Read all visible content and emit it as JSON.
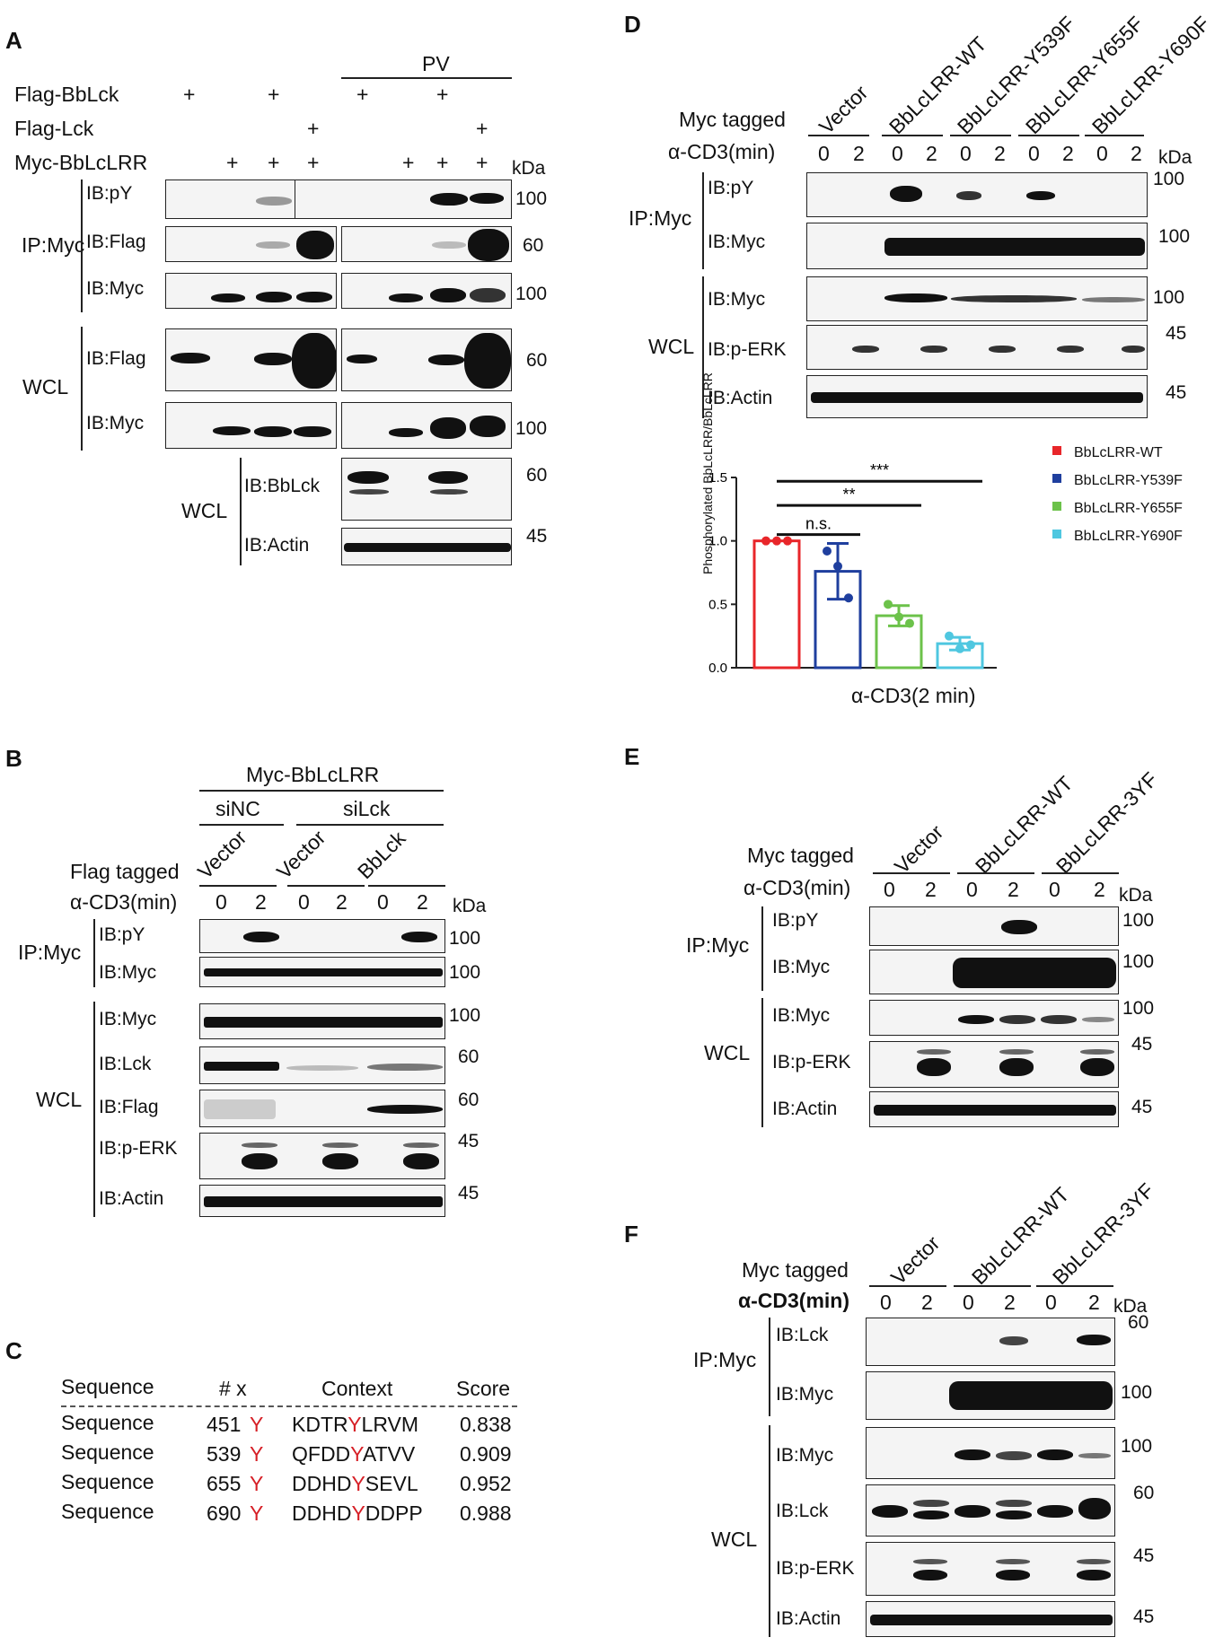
{
  "panels": {
    "A": {
      "letter": "A",
      "pv": "PV",
      "rows": [
        {
          "label": "Flag-BbLck",
          "marks": [
            "+",
            "+",
            "+",
            "+"
          ]
        },
        {
          "label": "Flag-Lck",
          "marks": [
            "+",
            "+"
          ]
        },
        {
          "label": "Myc-BbLcLRR",
          "marks": [
            "+",
            "+",
            "+",
            "+",
            "+",
            "+"
          ]
        }
      ],
      "kda": "kDa",
      "ip": "IP:Myc",
      "wcl": "WCL",
      "wcl2": "WCL",
      "blots": [
        {
          "ib": "IB:pY",
          "mw": "100"
        },
        {
          "ib": "IB:Flag",
          "mw": "60"
        },
        {
          "ib": "IB:Myc",
          "mw": "100"
        },
        {
          "ib": "IB:Flag",
          "mw": "60"
        },
        {
          "ib": "IB:Myc",
          "mw": "100"
        },
        {
          "ib": "IB:BbLck",
          "mw": "60"
        },
        {
          "ib": "IB:Actin",
          "mw": "45"
        }
      ]
    },
    "B": {
      "letter": "B",
      "top": "Myc-BbLcLRR",
      "sinc": "siNC",
      "silck": "siLck",
      "groups": [
        "Vector",
        "Vector",
        "BbLck"
      ],
      "tagged": "Flag tagged",
      "cd3": "α-CD3(min)",
      "times": [
        "0",
        "2",
        "0",
        "2",
        "0",
        "2"
      ],
      "kda": "kDa",
      "ip": "IP:Myc",
      "wcl": "WCL",
      "blots": [
        {
          "ib": "IB:pY",
          "mw": "100"
        },
        {
          "ib": "IB:Myc",
          "mw": "100"
        },
        {
          "ib": "IB:Myc",
          "mw": "100"
        },
        {
          "ib": "IB:Lck",
          "mw": "60"
        },
        {
          "ib": "IB:Flag",
          "mw": "60"
        },
        {
          "ib": "IB:p-ERK",
          "mw": "45"
        },
        {
          "ib": "IB:Actin",
          "mw": "45"
        }
      ]
    },
    "C": {
      "letter": "C",
      "headers": [
        "Sequence",
        "# x",
        "Context",
        "Score"
      ],
      "rows": [
        {
          "seq": "Sequence",
          "pos": "451",
          "aa": "Y",
          "pre": "KDTR",
          "mid": "Y",
          "post": "LRVM",
          "score": "0.838"
        },
        {
          "seq": "Sequence",
          "pos": "539",
          "aa": "Y",
          "pre": "QFDD",
          "mid": "Y",
          "post": "ATVV",
          "score": "0.909"
        },
        {
          "seq": "Sequence",
          "pos": "655",
          "aa": "Y",
          "pre": "DDHD",
          "mid": "Y",
          "post": "SEVL",
          "score": "0.952"
        },
        {
          "seq": "Sequence",
          "pos": "690",
          "aa": "Y",
          "pre": "DDHD",
          "mid": "Y",
          "post": "DDPP",
          "score": "0.988"
        }
      ]
    },
    "D": {
      "letter": "D",
      "groups": [
        "Vector",
        "BbLcLRR-WT",
        "BbLcLRR-Y539F",
        "BbLcLRR-Y655F",
        "BbLcLRR-Y690F"
      ],
      "tagged": "Myc tagged",
      "cd3": "α-CD3(min)",
      "times": [
        "0",
        "2",
        "0",
        "2",
        "0",
        "2",
        "0",
        "2",
        "0",
        "2"
      ],
      "kda": "kDa",
      "ip": "IP:Myc",
      "wcl": "WCL",
      "blots": [
        {
          "ib": "IB:pY",
          "mw": "100"
        },
        {
          "ib": "IB:Myc",
          "mw": "100"
        },
        {
          "ib": "IB:Myc",
          "mw": "100"
        },
        {
          "ib": "IB:p-ERK",
          "mw": "45"
        },
        {
          "ib": "IB:Actin",
          "mw": "45"
        }
      ]
    },
    "E": {
      "letter": "E",
      "groups": [
        "Vector",
        "BbLcLRR-WT",
        "BbLcLRR-3YF"
      ],
      "tagged": "Myc tagged",
      "cd3": "α-CD3(min)",
      "times": [
        "0",
        "2",
        "0",
        "2",
        "0",
        "2"
      ],
      "kda": "kDa",
      "ip": "IP:Myc",
      "wcl": "WCL",
      "blots": [
        {
          "ib": "IB:pY",
          "mw": "100"
        },
        {
          "ib": "IB:Myc",
          "mw": "100"
        },
        {
          "ib": "IB:Myc",
          "mw": "100"
        },
        {
          "ib": "IB:p-ERK",
          "mw": "45"
        },
        {
          "ib": "IB:Actin",
          "mw": "45"
        }
      ]
    },
    "F": {
      "letter": "F",
      "groups": [
        "Vector",
        "BbLcLRR-WT",
        "BbLcLRR-3YF"
      ],
      "tagged": "Myc tagged",
      "cd3": "α-CD3(min)",
      "times": [
        "0",
        "2",
        "0",
        "2",
        "0",
        "2"
      ],
      "kda": "kDa",
      "ip": "IP:Myc",
      "wcl": "WCL",
      "blots": [
        {
          "ib": "IB:Lck",
          "mw": "60"
        },
        {
          "ib": "IB:Myc",
          "mw": "100"
        },
        {
          "ib": "IB:Myc",
          "mw": "100"
        },
        {
          "ib": "IB:Lck",
          "mw": "60"
        },
        {
          "ib": "IB:p-ERK",
          "mw": "45"
        },
        {
          "ib": "IB:Actin",
          "mw": "45"
        }
      ]
    }
  },
  "chart_data": {
    "type": "bar",
    "categories": [
      "BbLcLRR-WT",
      "BbLcLRR-Y539F",
      "BbLcLRR-Y655F",
      "BbLcLRR-Y690F"
    ],
    "values": [
      1.0,
      0.76,
      0.41,
      0.19
    ],
    "errors": [
      0.0,
      0.22,
      0.08,
      0.05
    ],
    "points": [
      [
        1.0,
        1.0,
        1.0
      ],
      [
        0.92,
        0.8,
        0.55
      ],
      [
        0.5,
        0.4,
        0.35
      ],
      [
        0.25,
        0.15,
        0.18
      ]
    ],
    "colors": [
      "#e8262a",
      "#1f3f9e",
      "#6cc24a",
      "#4fc7e0"
    ],
    "xlabel": "α-CD3(2 min)",
    "ylabel": "Phosphorylated BbLcLRR/BbLcLRR",
    "ylim": [
      0,
      1.5
    ],
    "yticks": [
      "0.0",
      "0.5",
      "1.0",
      "1.5"
    ],
    "significance": [
      "n.s.",
      "**",
      "***"
    ],
    "legend": [
      "BbLcLRR-WT",
      "BbLcLRR-Y539F",
      "BbLcLRR-Y655F",
      "BbLcLRR-Y690F"
    ],
    "legend_position": "right"
  }
}
